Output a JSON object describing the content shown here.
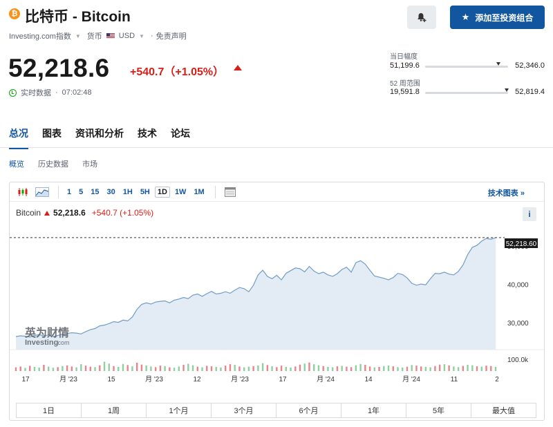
{
  "header": {
    "coin_symbol": "₿",
    "title": "比特币 - Bitcoin",
    "source": "Investing.com指数",
    "currency_label": "货币",
    "currency": "USD",
    "disclaimer": "免责声明",
    "add_portfolio": "添加至投资组合",
    "bell_icon": "bell-plus-icon",
    "star_icon": "star-icon"
  },
  "quote": {
    "price": "52,218.6",
    "change": "+540.7（+1.05%）",
    "realtime_label": "实时数据",
    "time": "07:02:48"
  },
  "day_range": {
    "label": "当日幅度",
    "low": "51,199.6",
    "high": "52,346.0",
    "position": 0.88
  },
  "week52_range": {
    "label": "52 周范围",
    "low": "19,591.8",
    "high": "52,819.4",
    "position": 0.98
  },
  "tabs": [
    "总况",
    "图表",
    "资讯和分析",
    "技术",
    "论坛"
  ],
  "subtabs": [
    "概览",
    "历史数据",
    "市场"
  ],
  "toolbar": {
    "intervals": [
      "1",
      "5",
      "15",
      "30",
      "1H",
      "5H",
      "1D",
      "1W",
      "1M"
    ],
    "active_interval": "1D",
    "tech_chart": "技术图表 »"
  },
  "legend": {
    "name": "Bitcoin",
    "value": "52,218.6",
    "change": "+540.7 (+1.05%)",
    "info": "i"
  },
  "watermark": {
    "cn": "英为财情",
    "en": "Investing",
    "suffix": ".com"
  },
  "range_buttons": [
    "1日",
    "1周",
    "1个月",
    "3个月",
    "6个月",
    "1年",
    "5年",
    "最大值"
  ],
  "colors": {
    "accent": "#1256a0",
    "down_up_red": "#d91e18",
    "area_fill": "#e3ecf5",
    "line": "#6f9cc7"
  },
  "chart_data": {
    "type": "area",
    "y_ticks": [
      "30,000",
      "40,000",
      "50,000"
    ],
    "ylim": [
      23000,
      54000
    ],
    "current_label": "52,218.60",
    "volume_label": "100.0k",
    "x_ticks": [
      "17",
      "月 '23",
      "15",
      "月 '23",
      "12",
      "月 '23",
      "17",
      "月 '24",
      "14",
      "月 '24",
      "11",
      "2"
    ],
    "values": [
      26400,
      26600,
      26500,
      26300,
      26700,
      26900,
      26600,
      26800,
      26400,
      26700,
      27000,
      27200,
      27400,
      27300,
      27100,
      27700,
      28200,
      28500,
      29200,
      29400,
      29800,
      30300,
      30100,
      30700,
      30500,
      31500,
      33500,
      34800,
      35200,
      34900,
      35400,
      35600,
      35700,
      35200,
      35900,
      36200,
      36600,
      36300,
      37200,
      37500,
      36900,
      37600,
      38200,
      37500,
      37700,
      38100,
      37700,
      38500,
      39200,
      38900,
      38100,
      39800,
      42500,
      43700,
      42100,
      41500,
      42400,
      41200,
      42900,
      43600,
      44300,
      44100,
      43300,
      44700,
      43500,
      42800,
      43200,
      42500,
      42100,
      42800,
      43900,
      44500,
      43200,
      45700,
      46200,
      45300,
      43700,
      42200,
      41900,
      41600,
      41200,
      41800,
      42900,
      42600,
      41700,
      40300,
      39800,
      40100,
      39900,
      41500,
      42900,
      42800,
      43200,
      42700,
      42500,
      43400,
      45100,
      47800,
      49700,
      50200,
      51300,
      52000,
      51800,
      52218.6
    ],
    "volumes": [
      18,
      22,
      15,
      25,
      20,
      17,
      30,
      21,
      16,
      19,
      24,
      27,
      22,
      18,
      33,
      26,
      21,
      19,
      28,
      45,
      36,
      24,
      20,
      34,
      29,
      23,
      40,
      31,
      27,
      22,
      19,
      26,
      24,
      18,
      16,
      22,
      30,
      35,
      28,
      21,
      18,
      25,
      23,
      20,
      17,
      26,
      33,
      30,
      22,
      18,
      21,
      24,
      27,
      38,
      29,
      23,
      19,
      26,
      20,
      17,
      22,
      31,
      36,
      41,
      33,
      28,
      24,
      20,
      18,
      23,
      25,
      21,
      19,
      28,
      34,
      30,
      22,
      18,
      20,
      24,
      27,
      23,
      19,
      17,
      21,
      29,
      26,
      22,
      20,
      18,
      24,
      31,
      33,
      27,
      22,
      19,
      25,
      30,
      28,
      23,
      21,
      26,
      24,
      20
    ]
  }
}
